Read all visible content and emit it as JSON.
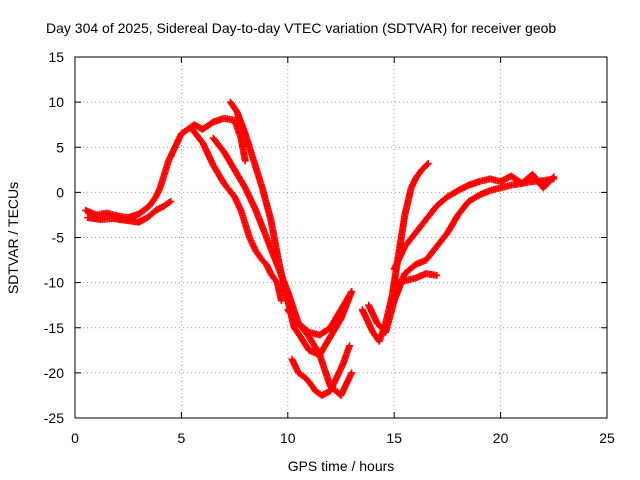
{
  "chart_data": {
    "type": "scatter",
    "title": "Day 304 of 2025, Sidereal Day-to-day VTEC variation (SDTVAR) for receiver geob",
    "xlabel": "GPS time / hours",
    "ylabel": "SDTVAR / TECUs",
    "xlim": [
      0,
      25
    ],
    "ylim": [
      -25,
      15
    ],
    "xticks": [
      "0",
      "5",
      "10",
      "15",
      "20",
      "25"
    ],
    "yticks": [
      "15",
      "10",
      "5",
      "0",
      "-5",
      "-10",
      "-15",
      "-20",
      "-25"
    ],
    "grid": true,
    "marker": "+",
    "color": "#ff0000",
    "series": [
      {
        "x": [
          0.5,
          1.0,
          1.5,
          2.0,
          2.5,
          3.0,
          3.5,
          3.8,
          4.0,
          4.2,
          4.4,
          4.6,
          4.8,
          5.0,
          5.3,
          5.6,
          6.0,
          6.5,
          7.0,
          7.5,
          7.8,
          8.0
        ],
        "y": [
          -2.0,
          -2.5,
          -2.3,
          -2.6,
          -2.8,
          -2.4,
          -1.5,
          -0.5,
          0.5,
          2.0,
          3.5,
          4.5,
          5.5,
          6.5,
          7.0,
          7.5,
          7.0,
          7.8,
          8.2,
          8.0,
          6.0,
          3.5
        ]
      },
      {
        "x": [
          0.6,
          1.2,
          1.8,
          2.4,
          3.0,
          3.4,
          3.8,
          4.2,
          4.5
        ],
        "y": [
          -2.8,
          -3.0,
          -2.9,
          -3.1,
          -3.3,
          -2.8,
          -2.0,
          -1.5,
          -1.0
        ]
      },
      {
        "x": [
          5.5,
          6.0,
          6.5,
          7.0,
          7.5,
          7.8,
          8.0,
          8.2,
          8.5,
          8.8,
          9.0,
          9.2,
          9.5,
          9.7
        ],
        "y": [
          7.0,
          5.5,
          3.0,
          1.0,
          -0.5,
          -2.0,
          -3.5,
          -5.0,
          -6.5,
          -7.5,
          -8.0,
          -9.0,
          -10.0,
          -12.0
        ]
      },
      {
        "x": [
          7.3,
          7.6,
          8.0,
          8.4,
          8.8,
          9.2,
          9.6,
          10.0,
          10.3,
          10.6,
          11.0,
          11.5,
          12.0,
          12.5,
          13.0
        ],
        "y": [
          10.0,
          9.0,
          6.5,
          3.5,
          0.5,
          -3.0,
          -8.0,
          -12.0,
          -15.0,
          -16.0,
          -17.5,
          -18.0,
          -16.0,
          -14.0,
          -11.0
        ]
      },
      {
        "x": [
          6.5,
          7.0,
          7.5,
          8.0,
          8.5,
          9.0,
          9.5,
          10.0,
          10.5,
          11.0,
          11.5,
          12.0,
          12.5,
          13.0
        ],
        "y": [
          6.0,
          4.5,
          2.5,
          0.5,
          -2.0,
          -5.0,
          -8.0,
          -11.0,
          -14.5,
          -16.0,
          -18.0,
          -21.5,
          -22.5,
          -20.0
        ]
      },
      {
        "x": [
          10.2,
          10.5,
          10.8,
          11.0,
          11.3,
          11.6,
          12.0,
          12.3,
          12.6,
          12.9
        ],
        "y": [
          -18.5,
          -20.0,
          -20.5,
          -21.0,
          -22.0,
          -22.5,
          -22.0,
          -20.5,
          -19.0,
          -17.0
        ]
      },
      {
        "x": [
          10.0,
          10.5,
          11.0,
          11.5,
          12.0,
          12.5,
          13.0
        ],
        "y": [
          -13.0,
          -14.5,
          -15.5,
          -15.8,
          -15.0,
          -13.0,
          -11.0
        ]
      },
      {
        "x": [
          13.5,
          13.8,
          14.0,
          14.3,
          14.6,
          14.9,
          15.2,
          15.5,
          15.8,
          16.0,
          16.3,
          16.6
        ],
        "y": [
          -13.0,
          -14.5,
          -15.5,
          -16.5,
          -14.5,
          -11.5,
          -7.0,
          -2.5,
          0.5,
          1.5,
          2.5,
          3.2
        ]
      },
      {
        "x": [
          13.8,
          14.2,
          14.6,
          15.0,
          15.5,
          16.0,
          16.5,
          17.0,
          17.5,
          18.0,
          18.5,
          19.0,
          19.5,
          20.0,
          20.5,
          21.0,
          21.5,
          22.0,
          22.5
        ],
        "y": [
          -12.5,
          -14.5,
          -15.5,
          -12.0,
          -9.0,
          -8.0,
          -7.5,
          -6.0,
          -4.5,
          -2.5,
          -1.0,
          -0.3,
          0.2,
          0.5,
          0.8,
          1.0,
          1.2,
          1.3,
          1.5
        ]
      },
      {
        "x": [
          15.0,
          15.5,
          16.0,
          16.5,
          17.0
        ],
        "y": [
          -10.0,
          -9.8,
          -9.5,
          -9.0,
          -9.2
        ]
      },
      {
        "x": [
          15.0,
          15.5,
          16.0,
          16.5,
          17.0,
          17.5,
          18.0,
          18.5,
          19.0,
          19.5,
          20.0,
          20.5,
          21.0,
          21.5,
          22.0,
          22.5
        ],
        "y": [
          -8.5,
          -6.0,
          -4.5,
          -3.0,
          -1.5,
          -0.5,
          0.2,
          0.8,
          1.2,
          1.5,
          1.2,
          1.8,
          1.0,
          2.0,
          0.5,
          1.7
        ]
      }
    ]
  }
}
